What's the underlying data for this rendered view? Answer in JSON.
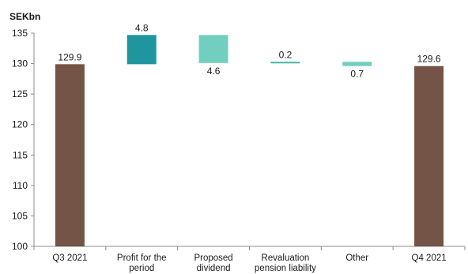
{
  "chart_data": {
    "type": "bar",
    "subtype": "waterfall",
    "unit_label": "SEKbn",
    "ylim": [
      100,
      135
    ],
    "yticks": [
      100,
      105,
      110,
      115,
      120,
      125,
      130,
      135
    ],
    "grid": false,
    "categories": [
      [
        "Q3 2021"
      ],
      [
        "Profit for the",
        "period"
      ],
      [
        "Proposed",
        "dividend"
      ],
      [
        "Revaluation",
        "pension liability"
      ],
      [
        "Other"
      ],
      [
        "Q4 2021"
      ]
    ],
    "bars": [
      {
        "kind": "total",
        "base": 100,
        "top": 129.9,
        "label": "129.9",
        "label_pos": "above",
        "color": "#735446"
      },
      {
        "kind": "increase",
        "base": 129.9,
        "top": 134.7,
        "label": "4.8",
        "label_pos": "above",
        "color": "#1f969d"
      },
      {
        "kind": "decrease",
        "base": 130.1,
        "top": 134.7,
        "label": "4.6",
        "label_pos": "below",
        "color": "#72cfbf"
      },
      {
        "kind": "increase",
        "base": 130.1,
        "top": 130.3,
        "label": "0.2",
        "label_pos": "above",
        "color": "#44b3ac"
      },
      {
        "kind": "decrease",
        "base": 129.6,
        "top": 130.3,
        "label": "0.7",
        "label_pos": "below",
        "color": "#72cfbf"
      },
      {
        "kind": "total",
        "base": 100,
        "top": 129.6,
        "label": "129.6",
        "label_pos": "above",
        "color": "#735446"
      }
    ]
  }
}
